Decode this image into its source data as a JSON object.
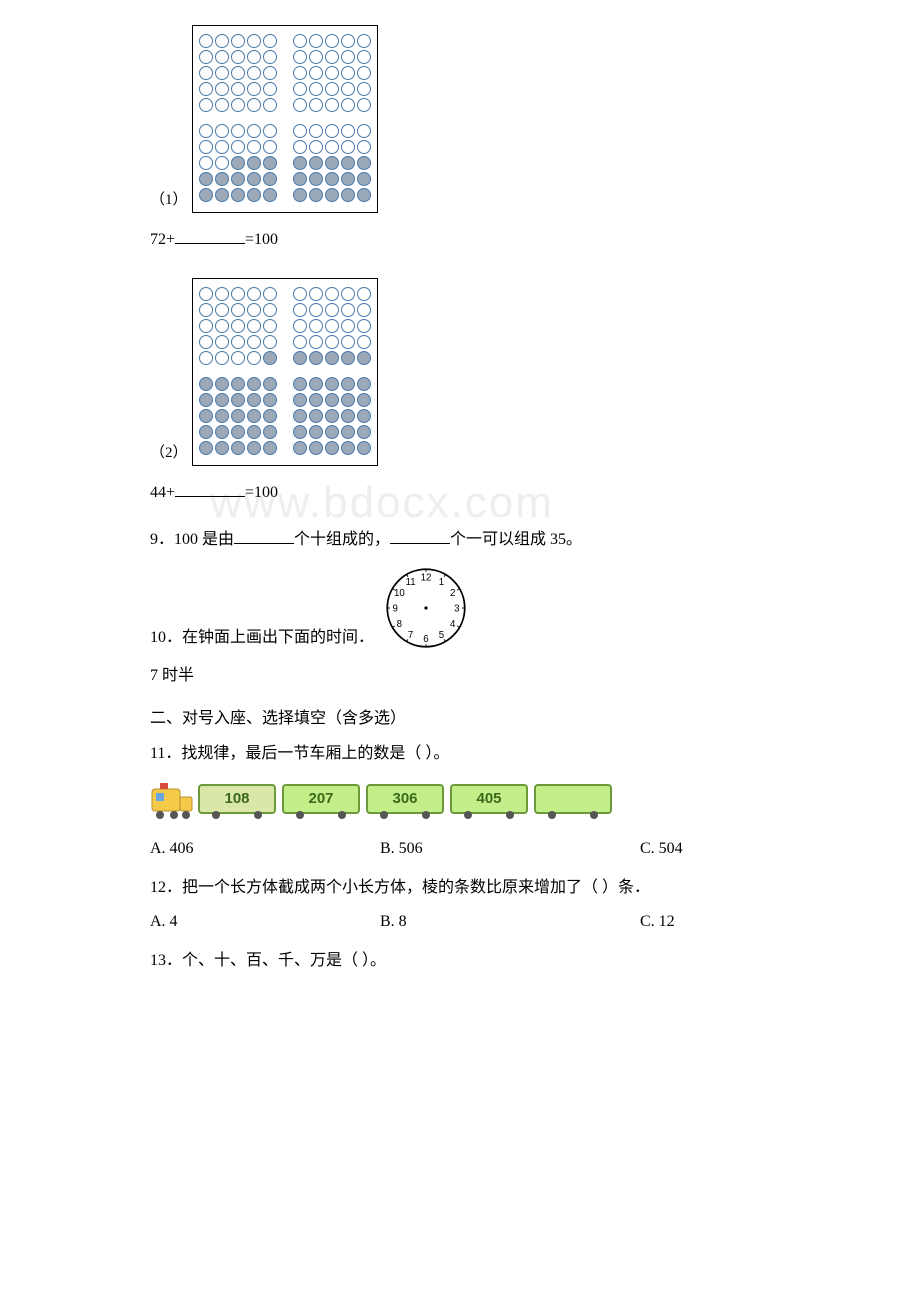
{
  "q8": {
    "paren1": "（1）",
    "eq1": "72+________=100",
    "paren2": "（2）",
    "eq2": "44+________=100",
    "box1": {
      "rows": [
        [
          0,
          0,
          0,
          0,
          0,
          0,
          0,
          0,
          0,
          0
        ],
        [
          0,
          0,
          0,
          0,
          0,
          0,
          0,
          0,
          0,
          0
        ],
        [
          0,
          0,
          0,
          0,
          0,
          0,
          0,
          0,
          0,
          0
        ],
        [
          0,
          0,
          0,
          0,
          0,
          0,
          0,
          0,
          0,
          0
        ],
        [
          0,
          0,
          0,
          0,
          0,
          0,
          0,
          0,
          0,
          0
        ],
        [
          0,
          0,
          0,
          0,
          0,
          0,
          0,
          0,
          0,
          0
        ],
        [
          0,
          0,
          0,
          0,
          0,
          0,
          0,
          0,
          0,
          0
        ],
        [
          0,
          0,
          1,
          1,
          1,
          1,
          1,
          1,
          1,
          1
        ],
        [
          1,
          1,
          1,
          1,
          1,
          1,
          1,
          1,
          1,
          1
        ],
        [
          1,
          1,
          1,
          1,
          1,
          1,
          1,
          1,
          1,
          1
        ]
      ],
      "section_break": 5
    },
    "box2": {
      "rows": [
        [
          0,
          0,
          0,
          0,
          0,
          0,
          0,
          0,
          0,
          0
        ],
        [
          0,
          0,
          0,
          0,
          0,
          0,
          0,
          0,
          0,
          0
        ],
        [
          0,
          0,
          0,
          0,
          0,
          0,
          0,
          0,
          0,
          0
        ],
        [
          0,
          0,
          0,
          0,
          0,
          0,
          0,
          0,
          0,
          0
        ],
        [
          0,
          0,
          0,
          0,
          1,
          1,
          1,
          1,
          1,
          1
        ],
        [
          1,
          1,
          1,
          1,
          1,
          1,
          1,
          1,
          1,
          1
        ],
        [
          1,
          1,
          1,
          1,
          1,
          1,
          1,
          1,
          1,
          1
        ],
        [
          1,
          1,
          1,
          1,
          1,
          1,
          1,
          1,
          1,
          1
        ],
        [
          1,
          1,
          1,
          1,
          1,
          1,
          1,
          1,
          1,
          1
        ],
        [
          1,
          1,
          1,
          1,
          1,
          1,
          1,
          1,
          1,
          1
        ]
      ],
      "section_break": 5
    }
  },
  "q9": {
    "prefix": "9．100 是由",
    "mid": "个十组成的，",
    "suffix": "个一可以组成 35。"
  },
  "q10": {
    "text": "10．在钟面上画出下面的时间．",
    "time_label": "7 时半"
  },
  "section2": "二、对号入座、选择填空（含多选）",
  "q11": {
    "text": "11．找规律，最后一节车厢上的数是（ ）。",
    "train_numbers": [
      "108",
      "207",
      "306",
      "405",
      ""
    ],
    "car_colors": [
      "#d9e7a8",
      "#c3ee8a",
      "#c3ee8a",
      "#c3ee8a",
      "#c3ee8a"
    ],
    "optA": "A. 406",
    "optB": "B. 506",
    "optC": "C. 504"
  },
  "q12": {
    "text": "12．把一个长方体截成两个小长方体，棱的条数比原来增加了（ ）条．",
    "optA": "A. 4",
    "optB": "B. 8",
    "optC": "C. 12"
  },
  "q13": {
    "text": "13．个、十、百、千、万是（ ）。"
  },
  "clock": {
    "numbers": [
      "12",
      "1",
      "2",
      "3",
      "4",
      "5",
      "6",
      "7",
      "8",
      "9",
      "10",
      "11"
    ]
  }
}
